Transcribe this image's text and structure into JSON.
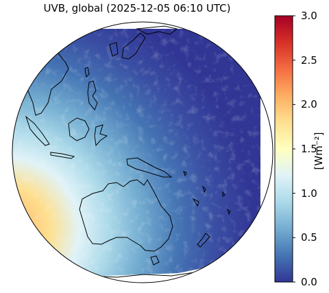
{
  "title": "UVB, global (2025-12-05 06:10 UTC)",
  "colorbar": {
    "label": "[Wm⁻²]",
    "range": [
      0.0,
      3.0
    ],
    "ticks": [
      "3.0",
      "2.5",
      "2.0",
      "1.5",
      "1.0",
      "0.5",
      "0.0"
    ],
    "colormap": "RdYlBu_r",
    "colors": [
      "#313695",
      "#4575b4",
      "#74add1",
      "#abd9e9",
      "#e0f3f8",
      "#ffffbf",
      "#fee090",
      "#fdae61",
      "#f46d43",
      "#d73027",
      "#a50026"
    ]
  },
  "map": {
    "projection": "orthographic (satellite disk view)",
    "region": "Asia-Pacific, Australia",
    "field": "UVB irradiance"
  }
}
